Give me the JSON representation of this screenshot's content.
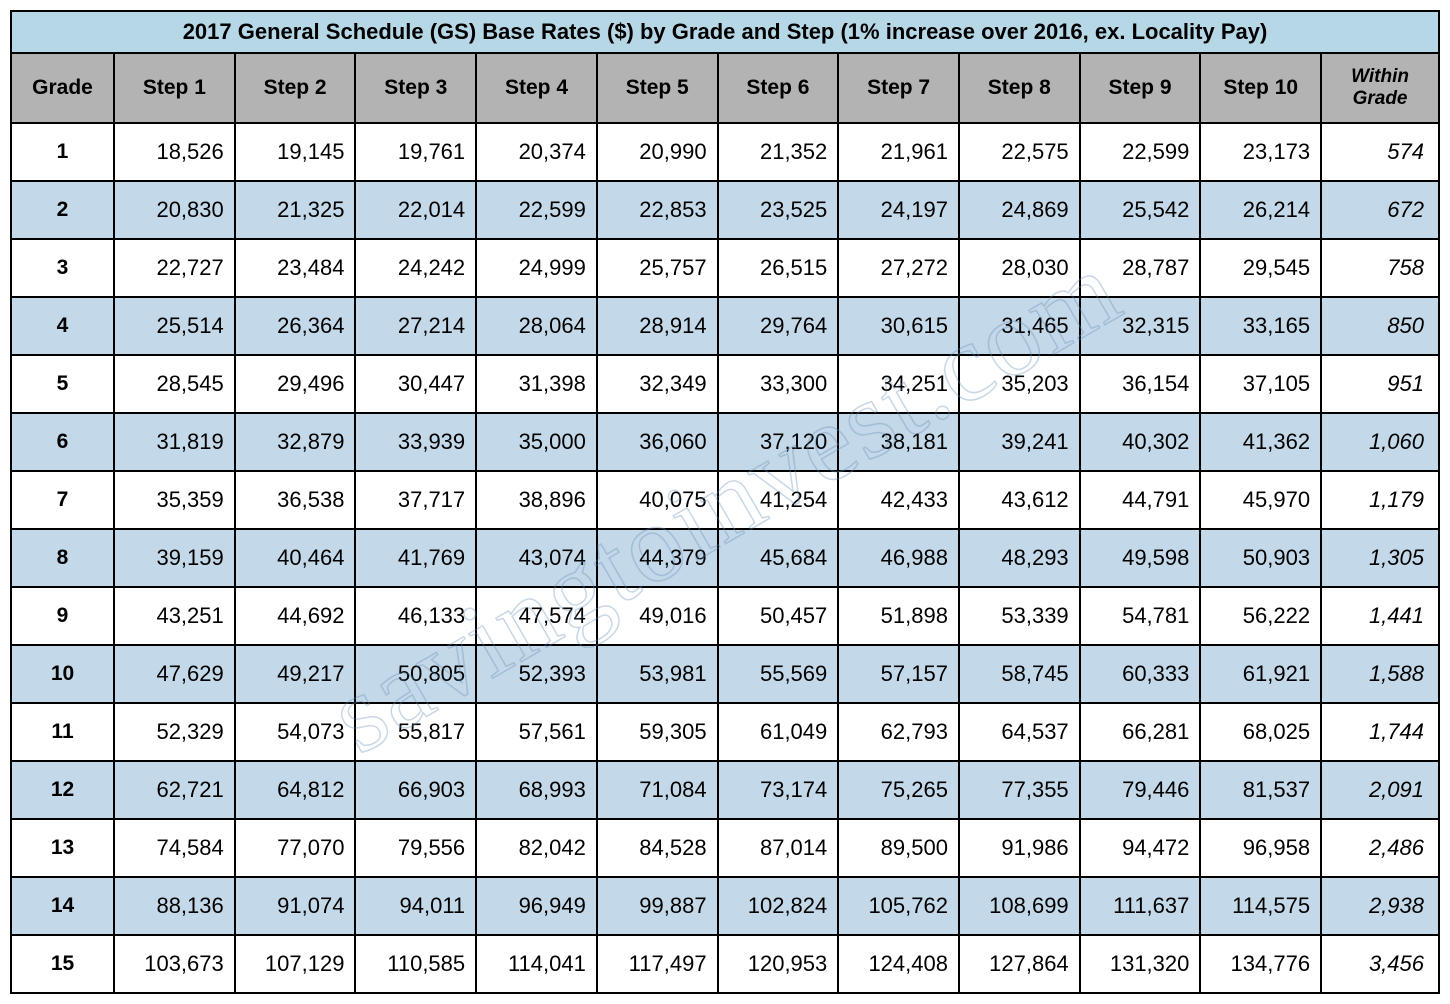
{
  "table": {
    "title": "2017 General Schedule (GS) Base Rates ($) by Grade and Step (1% increase over 2016, ex. Locality Pay)",
    "title_bg": "#b6d7e6",
    "header_bg": "#b3b3b3",
    "row_even_bg": "#c3d8e8",
    "row_odd_bg": "#ffffff",
    "border_color": "#000000",
    "text_color": "#000000",
    "title_fontsize": 22,
    "header_fontsize": 21,
    "cell_fontsize": 22,
    "columns": [
      "Grade",
      "Step 1",
      "Step 2",
      "Step 3",
      "Step 4",
      "Step 5",
      "Step 6",
      "Step 7",
      "Step 8",
      "Step 9",
      "Step 10",
      "Within Grade"
    ],
    "rows": [
      {
        "grade": "1",
        "steps": [
          "18,526",
          "19,145",
          "19,761",
          "20,374",
          "20,990",
          "21,352",
          "21,961",
          "22,575",
          "22,599",
          "23,173"
        ],
        "within": "574"
      },
      {
        "grade": "2",
        "steps": [
          "20,830",
          "21,325",
          "22,014",
          "22,599",
          "22,853",
          "23,525",
          "24,197",
          "24,869",
          "25,542",
          "26,214"
        ],
        "within": "672"
      },
      {
        "grade": "3",
        "steps": [
          "22,727",
          "23,484",
          "24,242",
          "24,999",
          "25,757",
          "26,515",
          "27,272",
          "28,030",
          "28,787",
          "29,545"
        ],
        "within": "758"
      },
      {
        "grade": "4",
        "steps": [
          "25,514",
          "26,364",
          "27,214",
          "28,064",
          "28,914",
          "29,764",
          "30,615",
          "31,465",
          "32,315",
          "33,165"
        ],
        "within": "850"
      },
      {
        "grade": "5",
        "steps": [
          "28,545",
          "29,496",
          "30,447",
          "31,398",
          "32,349",
          "33,300",
          "34,251",
          "35,203",
          "36,154",
          "37,105"
        ],
        "within": "951"
      },
      {
        "grade": "6",
        "steps": [
          "31,819",
          "32,879",
          "33,939",
          "35,000",
          "36,060",
          "37,120",
          "38,181",
          "39,241",
          "40,302",
          "41,362"
        ],
        "within": "1,060"
      },
      {
        "grade": "7",
        "steps": [
          "35,359",
          "36,538",
          "37,717",
          "38,896",
          "40,075",
          "41,254",
          "42,433",
          "43,612",
          "44,791",
          "45,970"
        ],
        "within": "1,179"
      },
      {
        "grade": "8",
        "steps": [
          "39,159",
          "40,464",
          "41,769",
          "43,074",
          "44,379",
          "45,684",
          "46,988",
          "48,293",
          "49,598",
          "50,903"
        ],
        "within": "1,305"
      },
      {
        "grade": "9",
        "steps": [
          "43,251",
          "44,692",
          "46,133",
          "47,574",
          "49,016",
          "50,457",
          "51,898",
          "53,339",
          "54,781",
          "56,222"
        ],
        "within": "1,441"
      },
      {
        "grade": "10",
        "steps": [
          "47,629",
          "49,217",
          "50,805",
          "52,393",
          "53,981",
          "55,569",
          "57,157",
          "58,745",
          "60,333",
          "61,921"
        ],
        "within": "1,588"
      },
      {
        "grade": "11",
        "steps": [
          "52,329",
          "54,073",
          "55,817",
          "57,561",
          "59,305",
          "61,049",
          "62,793",
          "64,537",
          "66,281",
          "68,025"
        ],
        "within": "1,744"
      },
      {
        "grade": "12",
        "steps": [
          "62,721",
          "64,812",
          "66,903",
          "68,993",
          "71,084",
          "73,174",
          "75,265",
          "77,355",
          "79,446",
          "81,537"
        ],
        "within": "2,091"
      },
      {
        "grade": "13",
        "steps": [
          "74,584",
          "77,070",
          "79,556",
          "82,042",
          "84,528",
          "87,014",
          "89,500",
          "91,986",
          "94,472",
          "96,958"
        ],
        "within": "2,486"
      },
      {
        "grade": "14",
        "steps": [
          "88,136",
          "91,074",
          "94,011",
          "96,949",
          "99,887",
          "102,824",
          "105,762",
          "108,699",
          "111,637",
          "114,575"
        ],
        "within": "2,938"
      },
      {
        "grade": "15",
        "steps": [
          "103,673",
          "107,129",
          "110,585",
          "114,041",
          "117,497",
          "120,953",
          "124,408",
          "127,864",
          "131,320",
          "134,776"
        ],
        "within": "3,456"
      }
    ]
  },
  "watermark": {
    "text": "savingtoinvest.com",
    "color": "rgba(100,140,180,0.35)",
    "rotation_deg": -30,
    "fontsize": 110
  }
}
